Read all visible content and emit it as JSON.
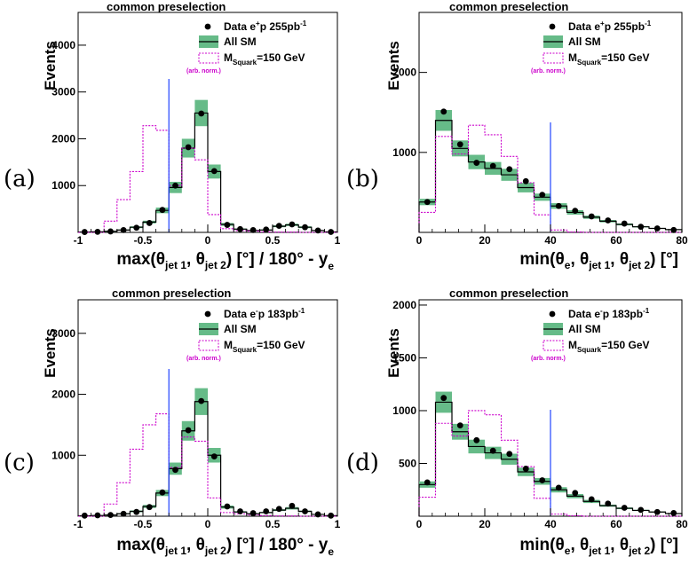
{
  "colors": {
    "band": "#66bb88",
    "signal": "#cc00cc",
    "cut": "#2244ff",
    "data": "#000000"
  },
  "chart_data": [
    {
      "type": "bar",
      "panel_label": "(a)",
      "title": "common preselection",
      "ylabel": "Events",
      "xlabel": {
        "main": "max(θ",
        "sub1": "jet 1",
        "mid": ", θ",
        "sub2": "jet 2",
        "post": ") [°] / 180° - y",
        "sub3": "e"
      },
      "xlim": [
        -1,
        1
      ],
      "ylim": [
        0,
        4700
      ],
      "xticks": [
        -1,
        -0.5,
        0,
        0.5,
        1
      ],
      "xtick_labels": [
        "-1",
        "-0.5",
        "0",
        "0.5",
        "1"
      ],
      "yticks": [
        1000,
        2000,
        3000,
        4000
      ],
      "ytick_labels": [
        "1000",
        "2000",
        "3000",
        "4000"
      ],
      "bin_edges": [
        -1,
        -0.9,
        -0.8,
        -0.7,
        -0.6,
        -0.5,
        -0.4,
        -0.3,
        -0.2,
        -0.1,
        0,
        0.1,
        0.2,
        0.3,
        0.4,
        0.5,
        0.6,
        0.7,
        0.8,
        0.9,
        1
      ],
      "series": [
        {
          "name": "All SM",
          "kind": "mc",
          "values": [
            8,
            12,
            25,
            50,
            110,
            220,
            470,
            960,
            1800,
            2550,
            1300,
            170,
            70,
            40,
            50,
            130,
            160,
            110,
            40,
            10
          ],
          "band": [
            3,
            5,
            8,
            12,
            20,
            30,
            60,
            120,
            200,
            280,
            150,
            30,
            15,
            10,
            12,
            20,
            25,
            20,
            8,
            3
          ]
        },
        {
          "name": "M_Squark=150 GeV",
          "kind": "signal",
          "values": [
            0,
            0,
            240,
            700,
            1300,
            2280,
            2180,
            1000,
            1800,
            1550,
            380,
            80,
            40,
            30,
            10,
            5,
            5,
            0,
            0,
            0
          ]
        },
        {
          "name": "Data e+p 255pb-1",
          "kind": "data",
          "values": [
            8,
            12,
            20,
            50,
            100,
            200,
            480,
            1000,
            1820,
            2540,
            1310,
            160,
            70,
            50,
            60,
            140,
            170,
            110,
            40,
            10
          ]
        }
      ],
      "cut": 40,
      "cut_x": -0.3,
      "legend": {
        "position": "top-right",
        "data": {
          "pre": "Data e",
          "sup": "+",
          "post": "p 255pb",
          "sup2": "-1"
        },
        "mc": "All SM",
        "signal": {
          "pre": "M",
          "sub": "Squark",
          "post": "=150 GeV"
        },
        "arb": "(arb. norm.)"
      }
    },
    {
      "type": "bar",
      "panel_label": "(b)",
      "title": "common preselection",
      "ylabel": "Events",
      "xlabel": {
        "main": "min(θ",
        "sub1": "e",
        "mid": ", θ",
        "sub2": "jet 1",
        "mid2": ", θ",
        "sub3": "jet 2",
        "post": ") [°]"
      },
      "xlim": [
        0,
        80
      ],
      "ylim": [
        0,
        2750
      ],
      "xticks": [
        0,
        20,
        40,
        60,
        80
      ],
      "xtick_labels": [
        "0",
        "20",
        "40",
        "60",
        "80"
      ],
      "yticks": [
        1000,
        2000
      ],
      "ytick_labels": [
        "1000",
        "2000"
      ],
      "bin_edges": [
        0,
        5,
        10,
        15,
        20,
        25,
        30,
        35,
        40,
        45,
        50,
        55,
        60,
        65,
        70,
        75,
        80
      ],
      "series": [
        {
          "name": "All SM",
          "kind": "mc",
          "values": [
            380,
            1400,
            1050,
            880,
            800,
            720,
            560,
            440,
            330,
            250,
            190,
            140,
            100,
            70,
            50,
            35
          ],
          "band": [
            40,
            130,
            100,
            90,
            80,
            75,
            60,
            45,
            35,
            28,
            20,
            15,
            12,
            8,
            6,
            5
          ]
        },
        {
          "name": "M_Squark=150 GeV",
          "kind": "signal",
          "values": [
            250,
            1200,
            980,
            1340,
            1220,
            950,
            620,
            220,
            30,
            5,
            0,
            0,
            0,
            0,
            0,
            0
          ]
        },
        {
          "name": "Data e+p 255pb-1",
          "kind": "data",
          "values": [
            380,
            1510,
            1100,
            870,
            830,
            790,
            640,
            470,
            330,
            270,
            200,
            150,
            110,
            70,
            50,
            30
          ]
        }
      ],
      "cut": 40,
      "legend": {
        "position": "top-right",
        "data": {
          "pre": "Data e",
          "sup": "+",
          "post": "p 255pb",
          "sup2": "-1"
        },
        "mc": "All SM",
        "signal": {
          "pre": "M",
          "sub": "Squark",
          "post": "=150 GeV"
        },
        "arb": "(arb. norm.)"
      }
    },
    {
      "type": "bar",
      "panel_label": "(c)",
      "title": "common preselection",
      "ylabel": "Events",
      "xlabel": {
        "main": "max(θ",
        "sub1": "jet 1",
        "mid": ", θ",
        "sub2": "jet 2",
        "post": ") [°] / 180° - y",
        "sub3": "e"
      },
      "xlim": [
        -1,
        1
      ],
      "ylim": [
        0,
        3550
      ],
      "xticks": [
        -1,
        -0.5,
        0,
        0.5,
        1
      ],
      "xtick_labels": [
        "-1",
        "-0.5",
        "0",
        "0.5",
        "1"
      ],
      "yticks": [
        1000,
        2000,
        3000
      ],
      "ytick_labels": [
        "1000",
        "2000",
        "3000"
      ],
      "bin_edges": [
        -1,
        -0.9,
        -0.8,
        -0.7,
        -0.6,
        -0.5,
        -0.4,
        -0.3,
        -0.2,
        -0.1,
        0,
        0.1,
        0.2,
        0.3,
        0.4,
        0.5,
        0.6,
        0.7,
        0.8,
        0.9,
        1
      ],
      "series": [
        {
          "name": "All SM",
          "kind": "mc",
          "values": [
            8,
            12,
            20,
            40,
            80,
            160,
            380,
            780,
            1400,
            1880,
            1000,
            150,
            70,
            40,
            60,
            100,
            130,
            80,
            30,
            10
          ],
          "band": [
            3,
            5,
            8,
            10,
            15,
            25,
            50,
            100,
            160,
            220,
            120,
            25,
            12,
            8,
            10,
            15,
            20,
            12,
            6,
            3
          ]
        },
        {
          "name": "M_Squark=150 GeV",
          "kind": "signal",
          "values": [
            0,
            0,
            200,
            550,
            1100,
            1500,
            1680,
            800,
            1300,
            1230,
            300,
            60,
            40,
            20,
            10,
            5,
            5,
            0,
            0,
            0
          ]
        },
        {
          "name": "Data e-p 183pb-1",
          "kind": "data",
          "values": [
            10,
            15,
            20,
            40,
            70,
            150,
            390,
            760,
            1410,
            1890,
            980,
            160,
            80,
            50,
            80,
            120,
            170,
            80,
            30,
            10
          ]
        }
      ],
      "cut_x": -0.3,
      "legend": {
        "position": "top-right",
        "data": {
          "pre": "Data e",
          "sup": "-",
          "post": "p 183pb",
          "sup2": "-1"
        },
        "mc": "All SM",
        "signal": {
          "pre": "M",
          "sub": "Squark",
          "post": "=150 GeV"
        },
        "arb": "(arb. norm.)"
      }
    },
    {
      "type": "bar",
      "panel_label": "(d)",
      "title": "common preselection",
      "ylabel": "Events",
      "xlabel": {
        "main": "min(θ",
        "sub1": "e",
        "mid": ", θ",
        "sub2": "jet 1",
        "mid2": ", θ",
        "sub3": "jet 2",
        "post": ") [°]"
      },
      "xlim": [
        0,
        80
      ],
      "ylim": [
        0,
        2050
      ],
      "xticks": [
        0,
        20,
        40,
        60,
        80
      ],
      "xtick_labels": [
        "0",
        "20",
        "40",
        "60",
        "80"
      ],
      "yticks": [
        500,
        1000,
        1500,
        2000
      ],
      "ytick_labels": [
        "500",
        "1000",
        "1500",
        "2000"
      ],
      "bin_edges": [
        0,
        5,
        10,
        15,
        20,
        25,
        30,
        35,
        40,
        45,
        50,
        55,
        60,
        65,
        70,
        75,
        80
      ],
      "series": [
        {
          "name": "All SM",
          "kind": "mc",
          "values": [
            300,
            1080,
            800,
            660,
            600,
            540,
            420,
            330,
            250,
            190,
            140,
            100,
            75,
            55,
            40,
            25
          ],
          "band": [
            30,
            100,
            75,
            65,
            58,
            52,
            40,
            32,
            25,
            20,
            15,
            10,
            8,
            6,
            5,
            4
          ]
        },
        {
          "name": "M_Squark=150 GeV",
          "kind": "signal",
          "values": [
            180,
            880,
            760,
            1000,
            960,
            720,
            470,
            170,
            20,
            5,
            0,
            0,
            0,
            0,
            0,
            0
          ]
        },
        {
          "name": "Data e-p 183pb-1",
          "kind": "data",
          "values": [
            320,
            1120,
            860,
            720,
            620,
            590,
            450,
            340,
            270,
            220,
            160,
            120,
            80,
            60,
            40,
            30
          ]
        }
      ],
      "cut": 40,
      "legend": {
        "position": "top-right",
        "data": {
          "pre": "Data e",
          "sup": "-",
          "post": "p 183pb",
          "sup2": "-1"
        },
        "mc": "All SM",
        "signal": {
          "pre": "M",
          "sub": "Squark",
          "post": "=150 GeV"
        },
        "arb": "(arb. norm.)"
      }
    }
  ]
}
